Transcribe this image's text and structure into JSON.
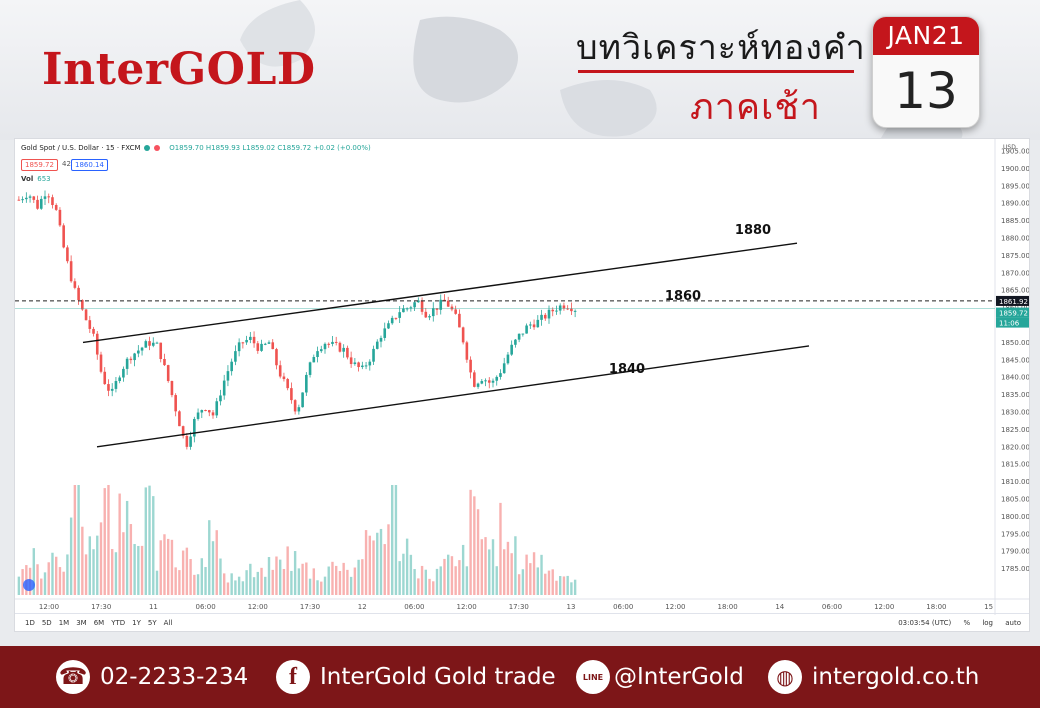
{
  "header": {
    "brand": "InterGOLD",
    "title_th": "บทวิเคราะห์ทองคำ",
    "subtitle_th": "ภาคเช้า",
    "calendar_month": "JAN21",
    "calendar_day": "13"
  },
  "chart_data": {
    "type": "candlestick",
    "symbol_line": "Gold Spot / U.S. Dollar · 15 · FXCM",
    "ohlc_text": "O1859.70 H1859.93 L1859.02 C1859.72 +0.02 (+0.00%)",
    "bid": "1859.72",
    "spread": "42",
    "ask": "1860.14",
    "volume_label": "Vol",
    "volume_value": "653",
    "y_unit": "USD",
    "ylim": [
      1778,
      1905
    ],
    "y_ticks": [
      "1905.00",
      "1900.00",
      "1895.00",
      "1890.00",
      "1885.00",
      "1880.00",
      "1875.00",
      "1870.00",
      "1865.00",
      "1860.00",
      "1855.00",
      "1850.00",
      "1845.00",
      "1840.00",
      "1835.00",
      "1830.00",
      "1825.00",
      "1820.00",
      "1815.00",
      "1810.00",
      "1805.00",
      "1800.00",
      "1795.00",
      "1790.00",
      "1785.00"
    ],
    "x_ticks": [
      "12:00",
      "17:30",
      "11",
      "06:00",
      "12:00",
      "17:30",
      "12",
      "06:00",
      "12:00",
      "17:30",
      "13",
      "06:00",
      "12:00",
      "18:00",
      "14",
      "06:00",
      "12:00",
      "18:00",
      "15"
    ],
    "price_labels": {
      "line": "1861.92",
      "last": "1859.72",
      "countdown": "11:06"
    },
    "horizontal_level": 1861.92,
    "annotations": [
      {
        "text": "1880",
        "price": 1880
      },
      {
        "text": "1860",
        "price": 1861
      },
      {
        "text": "1840",
        "price": 1840
      }
    ],
    "channel": {
      "upper": {
        "from_price": 1850,
        "to_price": 1878.5
      },
      "lower": {
        "from_price": 1820,
        "to_price": 1849
      }
    },
    "path_prices": [
      1891,
      1893,
      1889,
      1894,
      1888,
      1875,
      1865,
      1858,
      1852,
      1840,
      1835,
      1842,
      1846,
      1848,
      1850,
      1849,
      1840,
      1830,
      1820,
      1828,
      1832,
      1829,
      1838,
      1845,
      1850,
      1851,
      1848,
      1850,
      1842,
      1836,
      1830,
      1840,
      1848,
      1850,
      1849,
      1848,
      1844,
      1842,
      1846,
      1852,
      1855,
      1859,
      1860,
      1862,
      1858,
      1860,
      1862,
      1858,
      1850,
      1838,
      1840,
      1838,
      1842,
      1848,
      1852,
      1855,
      1856,
      1858,
      1860,
      1861,
      1859.7
    ],
    "volumes": [
      12,
      20,
      14,
      28,
      18,
      34,
      45,
      30,
      22,
      48,
      26,
      38,
      30,
      24,
      44,
      20,
      32,
      18,
      28,
      16,
      22,
      30,
      14,
      10,
      8,
      12,
      10,
      14,
      16,
      20,
      18,
      14,
      12,
      10,
      14,
      18,
      12,
      16,
      24,
      30,
      36,
      48,
      26,
      18,
      14,
      10,
      12,
      16,
      14,
      22,
      40,
      30,
      24,
      34,
      22,
      16,
      20,
      18,
      14,
      12,
      10,
      8
    ],
    "time_range": {
      "labels": [
        "1D",
        "5D",
        "1M",
        "3M",
        "6M",
        "YTD",
        "1Y",
        "5Y",
        "All"
      ]
    },
    "clock": "03:03:54 (UTC)",
    "scale_options": [
      "%",
      "log",
      "auto"
    ]
  },
  "footer": {
    "phone": "02-2233-234",
    "facebook": "InterGold Gold trade",
    "line": "@InterGold",
    "website": "intergold.co.th",
    "line_icon_text": "LINE"
  },
  "colors": {
    "brand_red": "#c4161c",
    "footer_bg": "#7d1618",
    "up": "#26a69a",
    "down": "#ef5350"
  }
}
